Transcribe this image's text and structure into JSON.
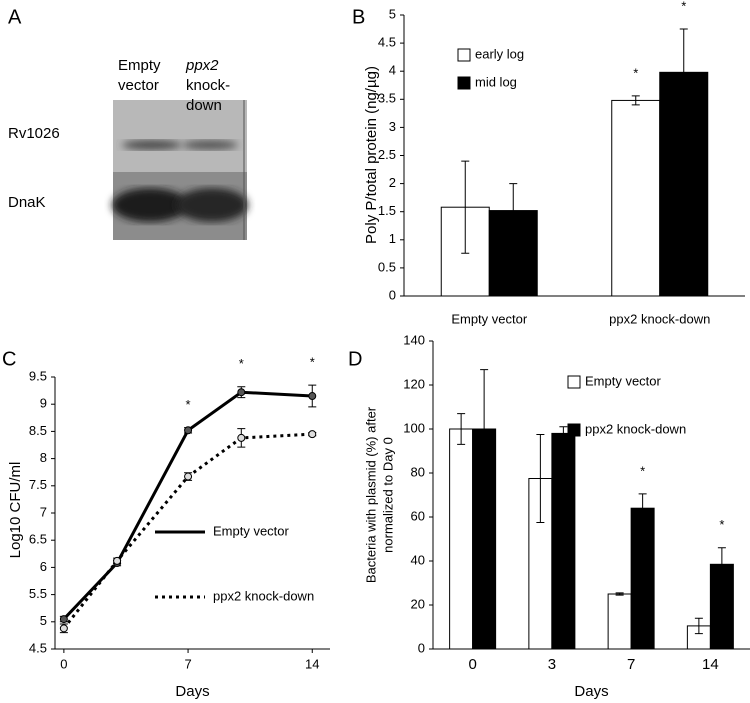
{
  "blot": {
    "panel": "A",
    "lanes": [
      [
        "Empty",
        "vector"
      ],
      [
        "ppx2",
        "knock-",
        "down"
      ]
    ],
    "rows": [
      "Rv1026",
      "DnaK"
    ]
  },
  "chart_data": [
    {
      "type": "bar",
      "panel": "B",
      "ylabel": "Poly P/total protein (ng/µg)",
      "categories": [
        "Empty vector",
        "ppx2 knock-down"
      ],
      "series": [
        {
          "name": "early log",
          "color": "#ffffff",
          "values": [
            1.58,
            3.48
          ],
          "errors": [
            0.82,
            0.08
          ],
          "significance": [
            null,
            "*"
          ]
        },
        {
          "name": "mid log",
          "color": "#000000",
          "values": [
            1.52,
            3.98
          ],
          "errors": [
            0.48,
            0.77
          ],
          "significance": [
            null,
            "*"
          ]
        }
      ],
      "ylim": [
        0,
        5
      ],
      "yticks": [
        0,
        0.5,
        1,
        1.5,
        2,
        2.5,
        3,
        3.5,
        4,
        4.5,
        5
      ],
      "legend": "upper left"
    },
    {
      "type": "line",
      "panel": "C",
      "xlabel": "Days",
      "ylabel": "Log10 CFU/ml",
      "x": [
        0,
        3,
        7,
        10,
        14
      ],
      "series": [
        {
          "name": "Empty vector",
          "color": "#000000",
          "line_style": "solid",
          "values": [
            5.05,
            6.08,
            8.52,
            9.22,
            9.15
          ],
          "errors": [
            0.05,
            0.05,
            0.05,
            0.1,
            0.2
          ],
          "significance": [
            null,
            null,
            "*",
            "*",
            "*"
          ]
        },
        {
          "name": "ppx2 knock-down",
          "color": "#000000",
          "line_style": "dotted",
          "values": [
            4.88,
            6.12,
            7.67,
            8.38,
            8.45
          ],
          "errors": [
            0.08,
            0.05,
            0.07,
            0.17,
            0.03
          ]
        }
      ],
      "xlim": [
        -0.5,
        15
      ],
      "xticks": [
        0,
        7,
        14
      ],
      "ylim": [
        4.5,
        9.5
      ],
      "yticks": [
        4.5,
        5,
        5.5,
        6,
        6.5,
        7,
        7.5,
        8,
        8.5,
        9,
        9.5
      ],
      "legend": "lower right"
    },
    {
      "type": "bar",
      "panel": "D",
      "xlabel": "Days",
      "ylabel": [
        "Bacteria with plasmid (%) after",
        "normalized to Day 0"
      ],
      "categories": [
        "0",
        "3",
        "7",
        "14"
      ],
      "series": [
        {
          "name": "Empty vector",
          "color": "#ffffff",
          "values": [
            100,
            77.5,
            25,
            10.5
          ],
          "errors": [
            7,
            20,
            0.5,
            3.5
          ]
        },
        {
          "name": "ppx2 knock-down",
          "color": "#000000",
          "values": [
            100,
            98,
            64,
            38.5
          ],
          "errors": [
            27,
            3,
            6.5,
            7.5
          ],
          "significance": [
            null,
            null,
            "*",
            "*"
          ]
        }
      ],
      "ylim": [
        0,
        140
      ],
      "yticks": [
        0,
        20,
        40,
        60,
        80,
        100,
        120,
        140
      ],
      "legend": "upper right"
    }
  ]
}
